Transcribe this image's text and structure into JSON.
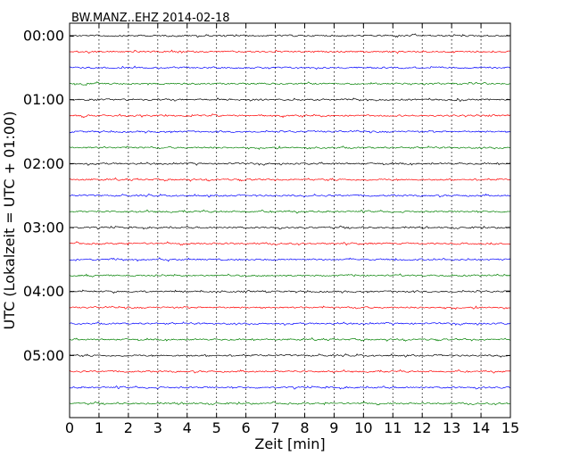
{
  "chart_data": {
    "type": "line",
    "title": "BW.MANZ..EHZ 2014-02-18",
    "xlabel": "Zeit  [min]",
    "ylabel": "UTC (Lokalzeit = UTC + 01:00)",
    "xlim": [
      0,
      15
    ],
    "x_ticks": [
      "0",
      "1",
      "2",
      "3",
      "4",
      "5",
      "6",
      "7",
      "8",
      "9",
      "10",
      "11",
      "12",
      "13",
      "14",
      "15"
    ],
    "y_tick_labels": [
      "00:00",
      "01:00",
      "02:00",
      "03:00",
      "04:00",
      "05:00"
    ],
    "trace_interval_min": 15,
    "trace_count": 24,
    "trace_colors": [
      "#000000",
      "#ff0000",
      "#0000ff",
      "#008000"
    ],
    "grid": "dotted vertical at each minute",
    "legend": "none"
  }
}
